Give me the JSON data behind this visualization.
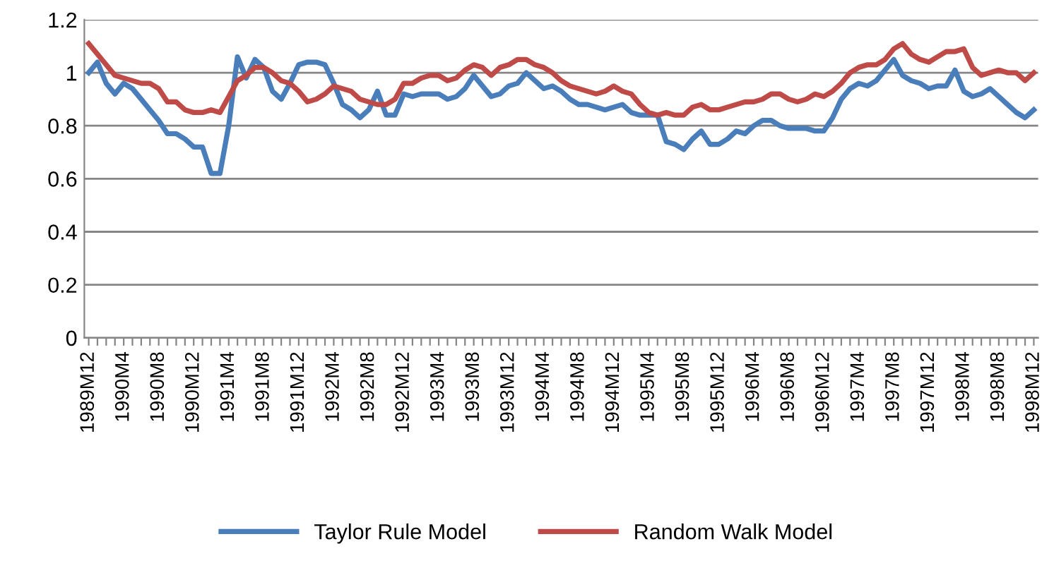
{
  "chart_data": {
    "type": "line",
    "categories": [
      "1989M12",
      null,
      null,
      null,
      "1990M4",
      null,
      null,
      null,
      "1990M8",
      null,
      null,
      null,
      "1990M12",
      null,
      null,
      null,
      "1991M4",
      null,
      null,
      null,
      "1991M8",
      null,
      null,
      null,
      "1991M12",
      null,
      null,
      null,
      "1992M4",
      null,
      null,
      null,
      "1992M8",
      null,
      null,
      null,
      "1992M12",
      null,
      null,
      null,
      "1993M4",
      null,
      null,
      null,
      "1993M8",
      null,
      null,
      null,
      "1993M12",
      null,
      null,
      null,
      "1994M4",
      null,
      null,
      null,
      "1994M8",
      null,
      null,
      null,
      "1994M12",
      null,
      null,
      null,
      "1995M4",
      null,
      null,
      null,
      "1995M8",
      null,
      null,
      null,
      "1995M12",
      null,
      null,
      null,
      "1996M4",
      null,
      null,
      null,
      "1996M8",
      null,
      null,
      null,
      "1996M12",
      null,
      null,
      null,
      "1997M4",
      null,
      null,
      null,
      "1997M8",
      null,
      null,
      null,
      "1997M12",
      null,
      null,
      null,
      "1998M4",
      null,
      null,
      null,
      "1998M8",
      null,
      null,
      null,
      "1998M12"
    ],
    "series": [
      {
        "name": "Taylor Rule Model",
        "color": "#4a7ebb",
        "values": [
          1.0,
          1.04,
          0.96,
          0.92,
          0.96,
          0.94,
          0.9,
          0.86,
          0.82,
          0.77,
          0.77,
          0.75,
          0.72,
          0.72,
          0.62,
          0.62,
          0.8,
          1.06,
          0.98,
          1.05,
          1.02,
          0.93,
          0.9,
          0.96,
          1.03,
          1.04,
          1.04,
          1.03,
          0.96,
          0.88,
          0.86,
          0.83,
          0.86,
          0.93,
          0.84,
          0.84,
          0.92,
          0.91,
          0.92,
          0.92,
          0.92,
          0.9,
          0.91,
          0.94,
          0.99,
          0.95,
          0.91,
          0.92,
          0.95,
          0.96,
          1.0,
          0.97,
          0.94,
          0.95,
          0.93,
          0.9,
          0.88,
          0.88,
          0.87,
          0.86,
          0.87,
          0.88,
          0.85,
          0.84,
          0.84,
          0.84,
          0.74,
          0.73,
          0.71,
          0.75,
          0.78,
          0.73,
          0.73,
          0.75,
          0.78,
          0.77,
          0.8,
          0.82,
          0.82,
          0.8,
          0.79,
          0.79,
          0.79,
          0.78,
          0.78,
          0.83,
          0.9,
          0.94,
          0.96,
          0.95,
          0.97,
          1.01,
          1.05,
          0.99,
          0.97,
          0.96,
          0.94,
          0.95,
          0.95,
          1.01,
          0.93,
          0.91,
          0.92,
          0.94,
          0.91,
          0.88,
          0.85,
          0.83,
          0.86
        ]
      },
      {
        "name": "Random Walk Model",
        "color": "#be4b48",
        "values": [
          1.11,
          1.07,
          1.03,
          0.99,
          0.98,
          0.97,
          0.96,
          0.96,
          0.94,
          0.89,
          0.89,
          0.86,
          0.85,
          0.85,
          0.86,
          0.85,
          0.91,
          0.97,
          0.99,
          1.02,
          1.02,
          1.0,
          0.97,
          0.96,
          0.93,
          0.89,
          0.9,
          0.92,
          0.95,
          0.94,
          0.93,
          0.9,
          0.89,
          0.88,
          0.88,
          0.9,
          0.96,
          0.96,
          0.98,
          0.99,
          0.99,
          0.97,
          0.98,
          1.01,
          1.03,
          1.02,
          0.99,
          1.02,
          1.03,
          1.05,
          1.05,
          1.03,
          1.02,
          1.0,
          0.97,
          0.95,
          0.94,
          0.93,
          0.92,
          0.93,
          0.95,
          0.93,
          0.92,
          0.88,
          0.85,
          0.84,
          0.85,
          0.84,
          0.84,
          0.87,
          0.88,
          0.86,
          0.86,
          0.87,
          0.88,
          0.89,
          0.89,
          0.9,
          0.92,
          0.92,
          0.9,
          0.89,
          0.9,
          0.92,
          0.91,
          0.93,
          0.96,
          1.0,
          1.02,
          1.03,
          1.03,
          1.05,
          1.09,
          1.11,
          1.07,
          1.05,
          1.04,
          1.06,
          1.08,
          1.08,
          1.09,
          1.02,
          0.99,
          1.0,
          1.01,
          1.0,
          1.0,
          0.97,
          1.0
        ]
      }
    ],
    "ylim": [
      0,
      1.2
    ],
    "yticks": [
      0,
      0.2,
      0.4,
      0.6,
      0.8,
      1,
      1.2
    ],
    "grid": "y",
    "legend": "bottom",
    "marker": "none",
    "line_style": "solid"
  }
}
